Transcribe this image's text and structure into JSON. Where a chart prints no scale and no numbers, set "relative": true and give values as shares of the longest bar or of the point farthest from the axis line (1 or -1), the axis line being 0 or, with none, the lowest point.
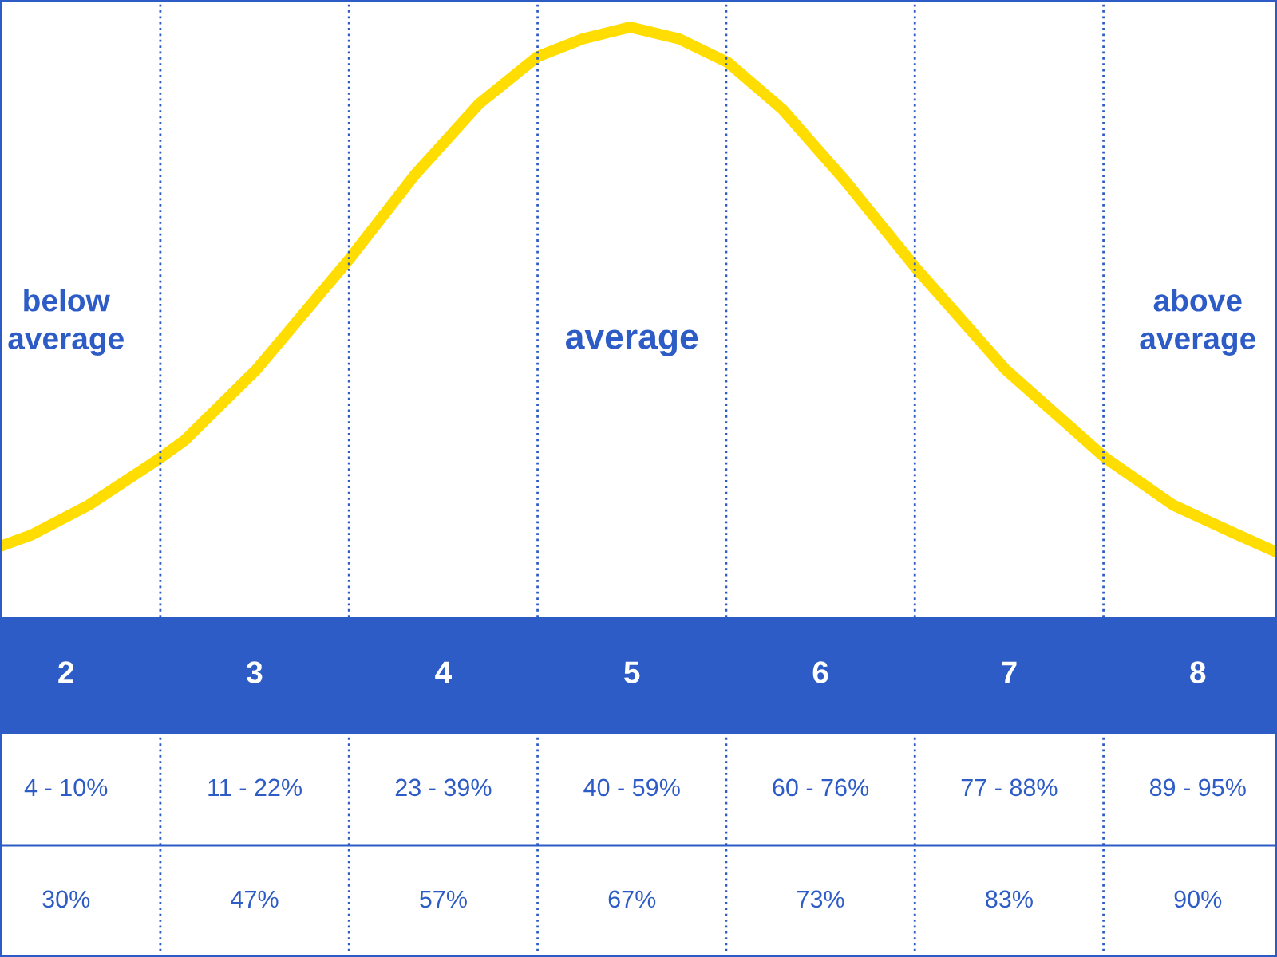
{
  "chart_data": {
    "type": "line",
    "relative": true,
    "xlim": [
      1.65,
      8.42
    ],
    "xticks": [
      2,
      3,
      4,
      5,
      6,
      7,
      8
    ],
    "series": [
      {
        "color": "#ffdd00",
        "x": [
          1.65,
          1.82,
          2.12,
          2.5,
          2.63,
          3.01,
          3.51,
          3.85,
          4.19,
          4.5,
          4.74,
          4.99,
          5.25,
          5.51,
          5.8,
          6.13,
          6.51,
          6.98,
          7.51,
          7.87,
          8.21,
          8.42
        ],
        "values": [
          0.12,
          0.14,
          0.19,
          0.27,
          0.3,
          0.42,
          0.61,
          0.75,
          0.87,
          0.95,
          0.98,
          1.0,
          0.98,
          0.94,
          0.86,
          0.74,
          0.59,
          0.42,
          0.27,
          0.19,
          0.14,
          0.11
        ]
      }
    ],
    "ref_lines": [
      {
        "axis": "x",
        "value": 2.5,
        "color": "#2e5cc6",
        "line_style": "dotted"
      },
      {
        "axis": "x",
        "value": 3.5,
        "color": "#2e5cc6",
        "line_style": "dotted"
      },
      {
        "axis": "x",
        "value": 4.5,
        "color": "#2e5cc6",
        "line_style": "dotted"
      },
      {
        "axis": "x",
        "value": 5.5,
        "color": "#2e5cc6",
        "line_style": "dotted"
      },
      {
        "axis": "x",
        "value": 6.5,
        "color": "#2e5cc6",
        "line_style": "dotted"
      },
      {
        "axis": "x",
        "value": 7.5,
        "color": "#2e5cc6",
        "line_style": "dotted"
      }
    ],
    "annotations": [
      "below\naverage",
      "average",
      "above\naverage",
      "4 - 10%",
      "11 - 22%",
      "23 - 39%",
      "40 - 59%",
      "60 - 76%",
      "77 - 88%",
      "89 - 95%",
      "30%",
      "47%",
      "57%",
      "67%",
      "73%",
      "83%",
      "90%"
    ],
    "marker": "none",
    "line_style": "solid"
  }
}
